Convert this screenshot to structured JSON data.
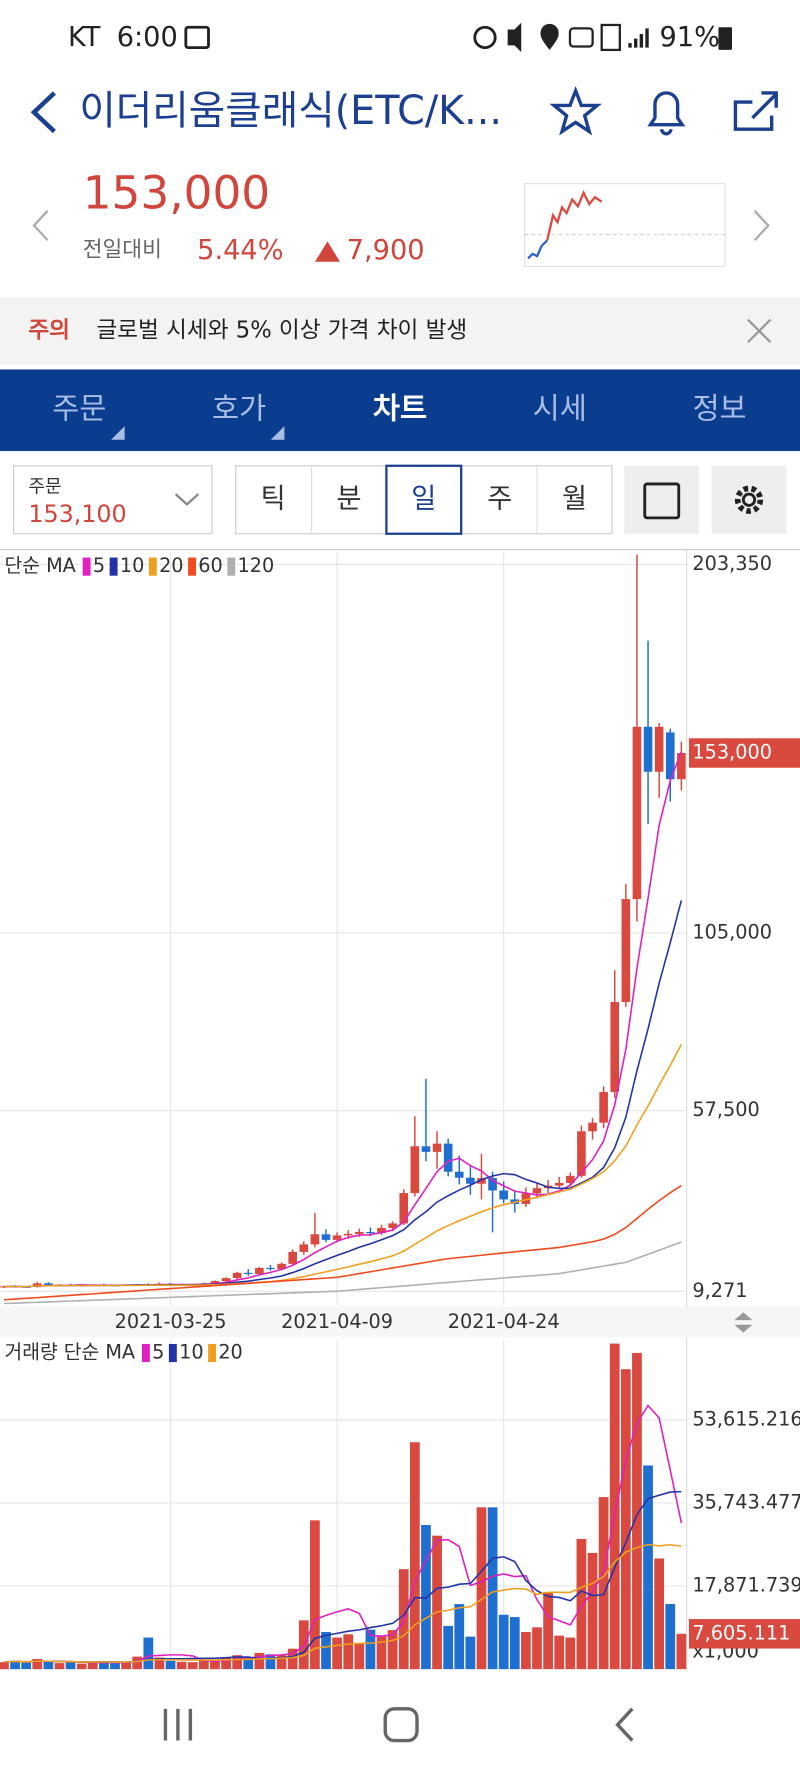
{
  "status_bar": {
    "carrier": "KT",
    "time": "6:00",
    "battery": "91%"
  },
  "header": {
    "title": "이더리움클래식(ETC/K..."
  },
  "price": {
    "current": "153,000",
    "change_label": "전일대비",
    "change_rate": "5.44%",
    "change_amount": "7,900"
  },
  "notice": {
    "label": "주의",
    "text": "글로벌 시세와 5% 이상 가격 차이 발생"
  },
  "tabs": [
    "주문",
    "호가",
    "차트",
    "시세",
    "정보"
  ],
  "order_box": {
    "label": "주문",
    "price": "153,100"
  },
  "periods": [
    "틱",
    "분",
    "일",
    "주",
    "월"
  ],
  "chart_data": [
    {
      "type": "candlestick",
      "legend_label": "단순 MA",
      "up_color": "#d9493f",
      "down_color": "#1f6fd1",
      "categories": [
        null,
        null,
        null,
        null,
        null,
        null,
        null,
        null,
        null,
        null,
        null,
        null,
        null,
        null,
        null,
        "2021-03-25",
        null,
        null,
        null,
        null,
        null,
        null,
        null,
        null,
        null,
        null,
        null,
        null,
        null,
        null,
        "2021-04-09",
        null,
        null,
        null,
        null,
        null,
        null,
        null,
        null,
        null,
        null,
        null,
        null,
        null,
        null,
        "2021-04-24",
        null,
        null,
        null,
        null,
        null,
        null,
        null,
        null,
        null,
        null,
        null,
        null,
        null,
        null,
        null,
        null
      ],
      "open": [
        10400,
        10600,
        10500,
        10400,
        11400,
        10900,
        11000,
        10800,
        10900,
        11000,
        10900,
        10800,
        11000,
        11100,
        11000,
        11300,
        10900,
        11000,
        11200,
        11400,
        12000,
        12800,
        14200,
        13900,
        15500,
        15200,
        16600,
        19800,
        21800,
        24500,
        23000,
        24200,
        24600,
        25100,
        24800,
        26200,
        27400,
        35500,
        48000,
        46500,
        48700,
        41200,
        39600,
        38000,
        39500,
        36200,
        33800,
        32600,
        35400,
        36800,
        37500,
        38200,
        40100,
        52000,
        54300,
        62500,
        86500,
        114000,
        160000,
        148000,
        158500,
        146000
      ],
      "high": [
        10800,
        10900,
        10700,
        11800,
        11700,
        11200,
        11300,
        11100,
        11200,
        11300,
        11100,
        11200,
        11300,
        11400,
        11600,
        11500,
        11200,
        11300,
        11600,
        12200,
        13000,
        14500,
        15200,
        15800,
        16300,
        17000,
        20500,
        22600,
        30200,
        25800,
        25000,
        25600,
        26000,
        26300,
        27000,
        28000,
        36500,
        56000,
        66000,
        52000,
        50000,
        45500,
        43000,
        46000,
        41200,
        38600,
        36000,
        37000,
        38000,
        39000,
        39800,
        41000,
        53500,
        55500,
        64000,
        95000,
        118000,
        206000,
        183000,
        161000,
        159500,
        156000
      ],
      "low": [
        10100,
        10300,
        10200,
        10300,
        10600,
        10600,
        10700,
        10500,
        10700,
        10800,
        10600,
        10600,
        10800,
        10900,
        10900,
        10800,
        10700,
        10800,
        11000,
        11300,
        11800,
        12500,
        13400,
        13700,
        14800,
        14900,
        16200,
        19000,
        21000,
        22400,
        22300,
        23300,
        23800,
        24000,
        24300,
        25300,
        27000,
        34600,
        44000,
        42000,
        40000,
        37800,
        35000,
        33800,
        25000,
        32800,
        30300,
        31800,
        34100,
        35500,
        36600,
        37200,
        39600,
        49800,
        52800,
        61000,
        85200,
        108000,
        134000,
        141000,
        140000,
        143000
      ],
      "close": [
        10600,
        10500,
        10400,
        11400,
        10900,
        11000,
        10800,
        10900,
        11000,
        10900,
        10800,
        11000,
        11100,
        11000,
        11300,
        10900,
        11000,
        11200,
        11400,
        12000,
        12800,
        14200,
        13900,
        15500,
        15200,
        16600,
        19800,
        21800,
        24500,
        23000,
        24200,
        24600,
        25100,
        24800,
        26200,
        27400,
        35500,
        48000,
        46500,
        48700,
        41200,
        39600,
        38000,
        39500,
        36200,
        33800,
        32600,
        35400,
        36800,
        37500,
        38200,
        40100,
        52000,
        54300,
        62500,
        86500,
        114000,
        160000,
        148000,
        160000,
        146000,
        153000
      ],
      "ma": [
        {
          "name": "5",
          "color": "#e020c0"
        },
        {
          "name": "10",
          "color": "#2233a8"
        },
        {
          "name": "20",
          "color": "#f0a020"
        },
        {
          "name": "60",
          "color": "#f04a1e",
          "values": [
            7000,
            7200,
            7400,
            7600,
            7800,
            8000,
            8200,
            8400,
            8600,
            8800,
            9000,
            9200,
            9400,
            9600,
            9800,
            10000,
            10200,
            10400,
            10600,
            10800,
            11000,
            11200,
            11400,
            11600,
            11800,
            12000,
            12200,
            12400,
            12600,
            12800,
            13000,
            13500,
            14000,
            14500,
            15000,
            15500,
            16000,
            16500,
            17000,
            17500,
            18000,
            18300,
            18600,
            18900,
            19200,
            19500,
            19800,
            20100,
            20400,
            20700,
            21000,
            21500,
            22000,
            22500,
            23200,
            24500,
            26300,
            28700,
            31200,
            33500,
            35600,
            37500
          ]
        },
        {
          "name": "120",
          "color": "#b0b0b0",
          "values": [
            6000,
            6110,
            6220,
            6330,
            6440,
            6550,
            6660,
            6770,
            6880,
            6990,
            7100,
            7210,
            7320,
            7430,
            7540,
            7650,
            7760,
            7870,
            7980,
            8090,
            8200,
            8310,
            8420,
            8530,
            8640,
            8750,
            8860,
            8970,
            9080,
            9190,
            9300,
            9535,
            9770,
            10005,
            10240,
            10475,
            10710,
            10945,
            11180,
            11415,
            11650,
            11885,
            12120,
            12355,
            12590,
            12825,
            13060,
            13295,
            13530,
            13765,
            14000,
            14500,
            15000,
            15500,
            16000,
            16500,
            17000,
            18080,
            19160,
            20240,
            21320,
            22400
          ]
        }
      ],
      "ylim": [
        5500,
        206700
      ],
      "yticks": [
        {
          "value": 203350,
          "label": "203,350"
        },
        {
          "value": 105000,
          "label": "105,000"
        },
        {
          "value": 57500,
          "label": "57,500"
        },
        {
          "value": 9271,
          "label": "9,271"
        }
      ],
      "current": {
        "value": 153000,
        "label": "153,000"
      },
      "grid": true
    },
    {
      "type": "bar",
      "legend_label": "거래량 단순 MA",
      "unit": "x1,000",
      "values": [
        1500,
        1800,
        1400,
        2200,
        1600,
        1300,
        1500,
        1200,
        1400,
        1700,
        1300,
        1500,
        2700,
        6800,
        2500,
        1800,
        1600,
        1500,
        2000,
        1800,
        2400,
        3000,
        2600,
        3500,
        3200,
        3000,
        4400,
        10500,
        32000,
        8000,
        6800,
        7500,
        5600,
        8500,
        7000,
        8400,
        21500,
        48800,
        31000,
        28700,
        9300,
        14000,
        7000,
        34800,
        34800,
        11700,
        11200,
        8000,
        9000,
        16600,
        7200,
        6800,
        28000,
        25000,
        37000,
        70000,
        64500,
        68000,
        43800,
        23800,
        14000,
        7605.111
      ],
      "ma": [
        {
          "name": "5",
          "color": "#e020c0"
        },
        {
          "name": "10",
          "color": "#2233a8"
        },
        {
          "name": "20",
          "color": "#f0a020"
        }
      ],
      "ylim": [
        0,
        70900
      ],
      "yticks": [
        {
          "value": 53615.216,
          "label": "53,615.216"
        },
        {
          "value": 35743.477,
          "label": "35,743.477"
        },
        {
          "value": 17871.739,
          "label": "17,871.739"
        }
      ],
      "current": {
        "value": 7605.111,
        "label": "7,605.111"
      },
      "grid": true
    }
  ]
}
